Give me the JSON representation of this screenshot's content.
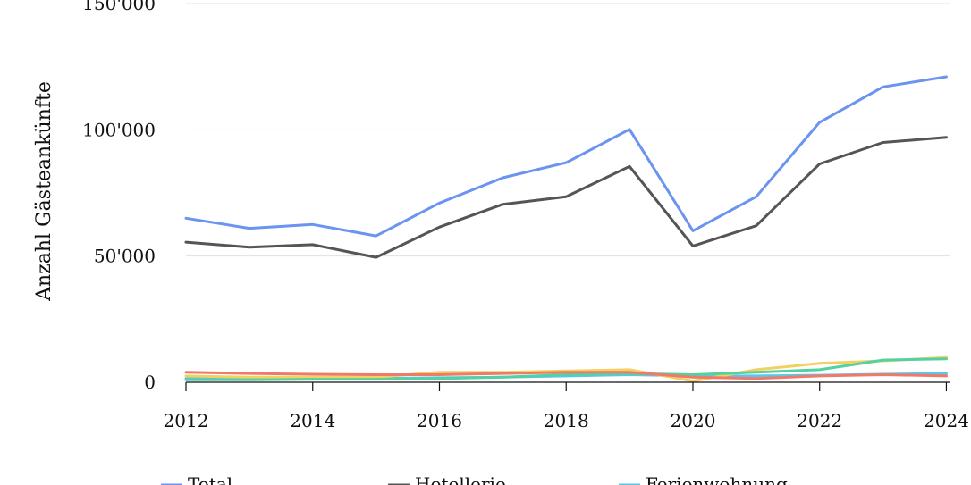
{
  "chart_data": {
    "type": "line",
    "ylabel": "Anzahl Gästeankünfte",
    "xlabel": "",
    "x": [
      2012,
      2013,
      2014,
      2015,
      2016,
      2017,
      2018,
      2019,
      2020,
      2021,
      2022,
      2023,
      2024
    ],
    "xticks": [
      2012,
      2014,
      2016,
      2018,
      2020,
      2022,
      2024
    ],
    "xtick_labels": [
      "2012",
      "2014",
      "2016",
      "2018",
      "2020",
      "2022",
      "2024"
    ],
    "yticks": [
      0,
      50000,
      100000,
      150000
    ],
    "ytick_labels": [
      "0",
      "50'000",
      "100'000",
      "150'000"
    ],
    "xlim": [
      2012,
      2024.05
    ],
    "ylim": [
      0,
      150000
    ],
    "grid": "horizontal",
    "legend_position": "bottom",
    "series": [
      {
        "name": "Total",
        "color": "#6b93f0",
        "values": [
          65000,
          61000,
          62500,
          58000,
          71000,
          81000,
          87000,
          100200,
          60000,
          73500,
          103000,
          117000,
          121000
        ]
      },
      {
        "name": "Hotellerie",
        "color": "#555555",
        "values": [
          55500,
          53500,
          54500,
          49500,
          61500,
          70500,
          73500,
          85500,
          54000,
          62000,
          86500,
          95000,
          97000
        ]
      },
      {
        "name": "Ferienwohnung",
        "color": "#5cc5ea",
        "values": [
          1500,
          1500,
          1500,
          1500,
          1800,
          2000,
          2500,
          3000,
          2500,
          2500,
          2800,
          3200,
          3500
        ]
      },
      {
        "name": "",
        "color": "#f2d062",
        "values": [
          2500,
          2000,
          2000,
          2000,
          4000,
          4000,
          4500,
          5000,
          500,
          5000,
          7500,
          8500,
          9800
        ]
      },
      {
        "name": "",
        "color": "#55d0a0",
        "values": [
          1000,
          1000,
          1200,
          1200,
          1500,
          2000,
          3000,
          3500,
          3000,
          4000,
          5000,
          8800,
          9300
        ]
      },
      {
        "name": "",
        "color": "#f07a6a",
        "values": [
          4000,
          3500,
          3200,
          3000,
          3000,
          3500,
          4000,
          4000,
          2000,
          1500,
          2500,
          3000,
          2500
        ]
      }
    ],
    "legend": [
      {
        "label": "Total",
        "color": "#6b93f0"
      },
      {
        "label": "Hotellerie",
        "color": "#555555"
      },
      {
        "label": "Ferienwohnung",
        "color": "#5cc5ea"
      }
    ]
  }
}
